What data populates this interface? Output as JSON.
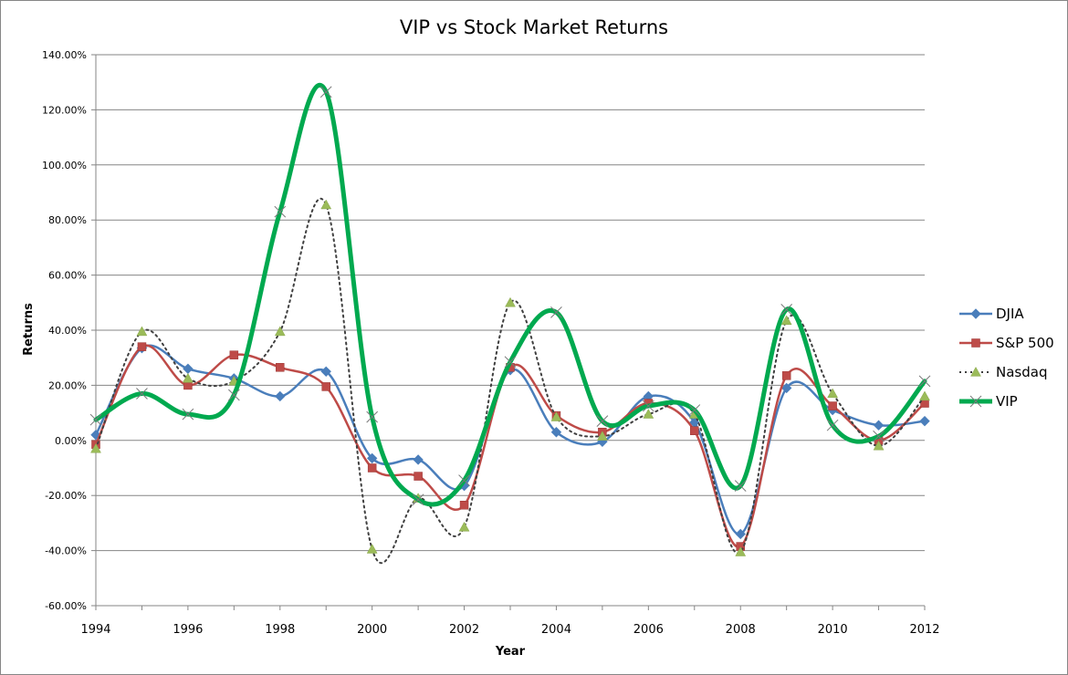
{
  "chart_data": {
    "type": "line",
    "title": "VIP vs Stock Market Returns",
    "xlabel": "Year",
    "ylabel": "Returns",
    "x": [
      1994,
      1995,
      1996,
      1997,
      1998,
      1999,
      2000,
      2001,
      2002,
      2003,
      2004,
      2005,
      2006,
      2007,
      2008,
      2009,
      2010,
      2011,
      2012
    ],
    "xlim": [
      1994,
      2012
    ],
    "x_ticks": [
      "1994",
      "1996",
      "1998",
      "2000",
      "2002",
      "2004",
      "2006",
      "2008",
      "2010",
      "2012"
    ],
    "ylim": [
      -0.6,
      1.4
    ],
    "y_ticks": [
      {
        "value": 1.4,
        "label": "140.00%"
      },
      {
        "value": 1.2,
        "label": "120.00%"
      },
      {
        "value": 1.0,
        "label": "100.00%"
      },
      {
        "value": 0.8,
        "label": "80.00%"
      },
      {
        "value": 0.6,
        "label": "60.00%"
      },
      {
        "value": 0.4,
        "label": "40.00%"
      },
      {
        "value": 0.2,
        "label": "20.00%"
      },
      {
        "value": 0.0,
        "label": "0.00%"
      },
      {
        "value": -0.2,
        "label": "-20.00%"
      },
      {
        "value": -0.4,
        "label": "-40.00%"
      },
      {
        "value": -0.6,
        "label": "-60.00%"
      }
    ],
    "grid": true,
    "legend_position": "right",
    "smoothed": true,
    "series": [
      {
        "name": "DJIA",
        "color": "#4a7ebb",
        "marker": "diamond",
        "dash": "solid",
        "values": [
          0.02,
          0.335,
          0.26,
          0.225,
          0.16,
          0.25,
          -0.065,
          -0.07,
          -0.165,
          0.255,
          0.03,
          -0.005,
          0.16,
          0.065,
          -0.34,
          0.19,
          0.11,
          0.055,
          0.07
        ]
      },
      {
        "name": "S&P 500",
        "color": "#be4b48",
        "marker": "square",
        "dash": "solid",
        "values": [
          -0.015,
          0.34,
          0.2,
          0.31,
          0.265,
          0.195,
          -0.1,
          -0.13,
          -0.235,
          0.265,
          0.09,
          0.03,
          0.135,
          0.035,
          -0.385,
          0.235,
          0.125,
          0.0,
          0.135
        ]
      },
      {
        "name": "Nasdaq",
        "color": "#404040",
        "marker": "triangle",
        "dash": "dotted",
        "values": [
          -0.03,
          0.395,
          0.225,
          0.215,
          0.395,
          0.855,
          -0.395,
          -0.21,
          -0.315,
          0.5,
          0.085,
          0.015,
          0.095,
          0.095,
          -0.405,
          0.435,
          0.17,
          -0.02,
          0.16
        ]
      },
      {
        "name": "VIP",
        "color": "#00a94f",
        "marker": "x",
        "dash": "solid",
        "values": [
          0.075,
          0.17,
          0.095,
          0.165,
          0.83,
          1.265,
          0.085,
          -0.215,
          -0.145,
          0.285,
          0.465,
          0.07,
          0.125,
          0.11,
          -0.165,
          0.475,
          0.055,
          0.015,
          0.215
        ]
      }
    ]
  }
}
